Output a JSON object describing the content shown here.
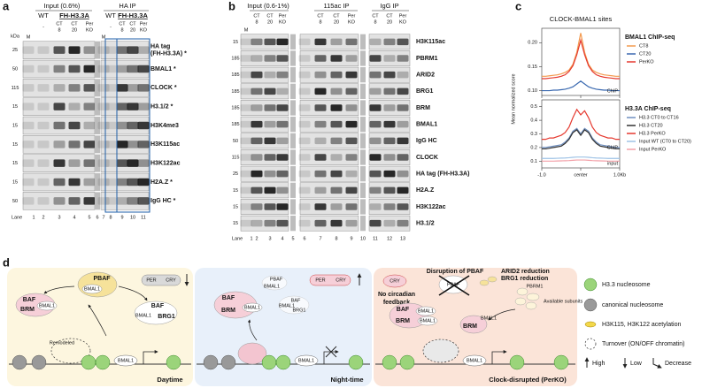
{
  "panel_a": {
    "letter": "a",
    "input_header": "Input (0.6%)",
    "ip_header": "HA IP",
    "input_groups": [
      "WT",
      "FH-H3.3A"
    ],
    "ip_groups": [
      "WT",
      "FH-H3.3A"
    ],
    "markers": [
      "M",
      "M"
    ],
    "kda_unit": "kDa",
    "input_lanes": [
      [
        "-"
      ],
      [
        "CT",
        "8"
      ],
      [
        "CT",
        "20"
      ],
      [
        "Per",
        "KO"
      ]
    ],
    "ip_lanes": [
      [
        "-"
      ],
      [
        "CT",
        "8"
      ],
      [
        "CT",
        "20"
      ],
      [
        "Per",
        "KO"
      ]
    ],
    "rows": [
      {
        "kda": "25",
        "label": [
          "HA tag",
          "(FH-H3.3A) *"
        ]
      },
      {
        "kda": "50",
        "label": [
          "BMAL1 *"
        ]
      },
      {
        "kda": "115",
        "label": [
          "CLOCK *"
        ]
      },
      {
        "kda": "15",
        "label": [
          "H3.1/2 *"
        ]
      },
      {
        "kda": "15",
        "label": [
          "H3K4me3"
        ]
      },
      {
        "kda": "15",
        "label": [
          "H3K115ac"
        ]
      },
      {
        "kda": "15",
        "label": [
          "H3K122ac"
        ]
      },
      {
        "kda": "15",
        "label": [
          "H2A.Z *"
        ]
      },
      {
        "kda": "50",
        "label": [
          "IgG HC *"
        ]
      }
    ],
    "lane_label": "Lane",
    "lane_numbers": [
      "1",
      "2",
      "3",
      "4",
      "5",
      "6",
      "7",
      "8",
      "9",
      "10",
      "11"
    ]
  },
  "panel_b": {
    "letter": "b",
    "input_header": "Input (0.6-1%)",
    "ip_header": "115ac IP",
    "igg_header": "IgG IP",
    "markers": [
      "M"
    ],
    "input_lanes": [
      [
        "CT",
        "8"
      ],
      [
        "CT",
        "20"
      ],
      [
        "Per",
        "KO"
      ]
    ],
    "ip_lanes": [
      [
        "CT",
        "8"
      ],
      [
        "CT",
        "20"
      ],
      [
        "Per",
        "KO"
      ]
    ],
    "igg_lanes": [
      [
        "CT",
        "8"
      ],
      [
        "CT",
        "20"
      ],
      [
        "Per",
        "KO"
      ]
    ],
    "rows": [
      {
        "kda": "15",
        "label": "H3K115ac"
      },
      {
        "kda": "185",
        "label": "PBRM1"
      },
      {
        "kda": "185",
        "label": "ARID2"
      },
      {
        "kda": "185",
        "label": "BRG1"
      },
      {
        "kda": "185",
        "label": "BRM"
      },
      {
        "kda": "185",
        "label": "BMAL1"
      },
      {
        "kda": "50",
        "label": "IgG HC"
      },
      {
        "kda": "115",
        "label": "CLOCK"
      },
      {
        "kda": "25",
        "label": "HA tag (FH-H3.3A)"
      },
      {
        "kda": "15",
        "label": "H2A.Z"
      },
      {
        "kda": "15",
        "label": "H3K122ac"
      },
      {
        "kda": "15",
        "label": "H3.1/2"
      }
    ],
    "lane_label": "Lane",
    "lane_numbers": [
      "1",
      "2",
      "3",
      "4",
      "5",
      "6",
      "7",
      "8",
      "9",
      "10",
      "11",
      "12",
      "13"
    ]
  },
  "panel_c": {
    "letter": "c",
    "title": "CLOCK-BMAL1 sites",
    "y_label": "Mean normalized score",
    "x": [
      -1,
      -0.9,
      -0.8,
      -0.7,
      -0.6,
      -0.5,
      -0.4,
      -0.3,
      -0.2,
      -0.1,
      0,
      0.1,
      0.2,
      0.3,
      0.4,
      0.5,
      0.6,
      0.7,
      0.8,
      0.9,
      1
    ],
    "xlim": [
      -1,
      1
    ],
    "xticks": [
      {
        "value": -1,
        "label": "-1.0"
      },
      {
        "value": 0,
        "label": "center"
      },
      {
        "value": 1,
        "label": "1.0Kb"
      }
    ],
    "charts": [
      {
        "type": "line",
        "legend_title": "BMAL1 ChIP-seq",
        "annotations": [
          "ChIP"
        ],
        "ylim": [
          0.09,
          0.23
        ],
        "yticks": [
          {
            "value": 0.1,
            "label": "0.10"
          },
          {
            "value": 0.15,
            "label": "0.15"
          },
          {
            "value": 0.2,
            "label": "0.20"
          }
        ],
        "series": [
          {
            "name": "CT8",
            "color": "#f39a4e",
            "values": [
              0.13,
              0.13,
              0.131,
              0.132,
              0.133,
              0.135,
              0.138,
              0.143,
              0.155,
              0.18,
              0.22,
              0.18,
              0.155,
              0.143,
              0.138,
              0.135,
              0.133,
              0.132,
              0.131,
              0.13,
              0.13
            ]
          },
          {
            "name": "CT20",
            "color": "#3a69b0",
            "values": [
              0.1,
              0.1,
              0.1,
              0.101,
              0.101,
              0.102,
              0.103,
              0.105,
              0.108,
              0.114,
              0.12,
              0.114,
              0.108,
              0.105,
              0.103,
              0.102,
              0.101,
              0.101,
              0.1,
              0.1,
              0.1
            ]
          },
          {
            "name": "PerKO",
            "color": "#e5392f",
            "values": [
              0.125,
              0.125,
              0.126,
              0.127,
              0.128,
              0.13,
              0.133,
              0.14,
              0.152,
              0.175,
              0.205,
              0.175,
              0.152,
              0.14,
              0.133,
              0.13,
              0.128,
              0.127,
              0.126,
              0.125,
              0.125
            ]
          }
        ]
      },
      {
        "type": "line",
        "legend_title": "H3.3A ChIP-seq",
        "annotations": [
          "ChIP",
          "input"
        ],
        "ylim": [
          0.05,
          0.55
        ],
        "yticks": [
          0.1,
          0.2,
          0.3,
          0.4,
          0.5
        ],
        "series": [
          {
            "name": "H3.3 CT0 to CT16",
            "color": "#6f8fc0",
            "values": [
              0.2,
              0.2,
              0.205,
              0.21,
              0.215,
              0.22,
              0.24,
              0.27,
              0.32,
              0.34,
              0.3,
              0.34,
              0.32,
              0.27,
              0.24,
              0.22,
              0.215,
              0.21,
              0.205,
              0.2,
              0.2
            ]
          },
          {
            "name": "H3.3 CT20",
            "color": "#333333",
            "values": [
              0.19,
              0.19,
              0.195,
              0.2,
              0.205,
              0.21,
              0.23,
              0.26,
              0.31,
              0.33,
              0.29,
              0.33,
              0.31,
              0.26,
              0.23,
              0.21,
              0.205,
              0.2,
              0.195,
              0.19,
              0.19
            ]
          },
          {
            "name": "H3.3 PerKO",
            "color": "#e5392f",
            "values": [
              0.26,
              0.26,
              0.27,
              0.27,
              0.28,
              0.29,
              0.31,
              0.35,
              0.42,
              0.48,
              0.44,
              0.47,
              0.42,
              0.35,
              0.31,
              0.29,
              0.28,
              0.27,
              0.27,
              0.26,
              0.26
            ]
          },
          {
            "name": "Input WT (CT0 to CT20)",
            "color": "#9fc3e6",
            "values": [
              0.12,
              0.12,
              0.12,
              0.12,
              0.121,
              0.122,
              0.123,
              0.125,
              0.128,
              0.13,
              0.13,
              0.13,
              0.128,
              0.125,
              0.123,
              0.122,
              0.121,
              0.12,
              0.12,
              0.12,
              0.12
            ]
          },
          {
            "name": "Input PerKO",
            "color": "#f2a0a8",
            "values": [
              0.1,
              0.1,
              0.1,
              0.1,
              0.101,
              0.102,
              0.103,
              0.104,
              0.106,
              0.108,
              0.108,
              0.108,
              0.106,
              0.104,
              0.103,
              0.102,
              0.101,
              0.1,
              0.1,
              0.1,
              0.1
            ]
          }
        ]
      }
    ]
  },
  "panel_d": {
    "letter": "d",
    "daytime": {
      "caption": "Daytime",
      "pbaf": "PBAF",
      "pbaf_bmal1": "BMAL1",
      "baf_left": "BAF",
      "brm": "BRM",
      "brm_bmal1": "BMAL1",
      "baf_right": "BAF",
      "brg1_bmal1": "BMAL1",
      "brg1": "BRG1",
      "per": "PER",
      "cry": "CRY",
      "remodeled": "Remodeled",
      "dna_bmal1": "BMAL1"
    },
    "nighttime": {
      "caption": "Night-time",
      "pbaf": "PBAF",
      "pbaf_bmal1": "BMAL1",
      "baf_small": "BAF",
      "small_bmal1": "BMAL1",
      "brg1": "BRG1",
      "per": "PER",
      "cry": "CRY",
      "baf": "BAF",
      "brm": "BRM",
      "brm_bmal1": "BMAL1",
      "dna_bmal1": "BMAL1"
    },
    "perko": {
      "caption": "Clock-disrupted (PerKO)",
      "cry": "CRY",
      "feedback": [
        "No circadian",
        "feedback"
      ],
      "disruption": "Disruption of PBAF",
      "pbaf": "PBAF",
      "reduction": [
        "ARID2 reduction",
        "BRG1 reduction"
      ],
      "pbrm1": "PBRM1",
      "available": "Available subunits",
      "baf": "BAF",
      "brm": "BRM",
      "bmal1_a": "BMAL1",
      "bmal1_b": "BMAL1",
      "brm2": "BRM",
      "bmal1_c": "BMAL1",
      "dna_bmal1": "BMAL1"
    },
    "legend": {
      "h33": "H3.3 nucleosome",
      "canonical": "canonical nucleosome",
      "acetylation": "H3K115, H3K122 acetylation",
      "turnover": "Turnover (ON/OFF chromatin)",
      "high": "High",
      "low": "Low",
      "decrease": "Decrease"
    }
  }
}
